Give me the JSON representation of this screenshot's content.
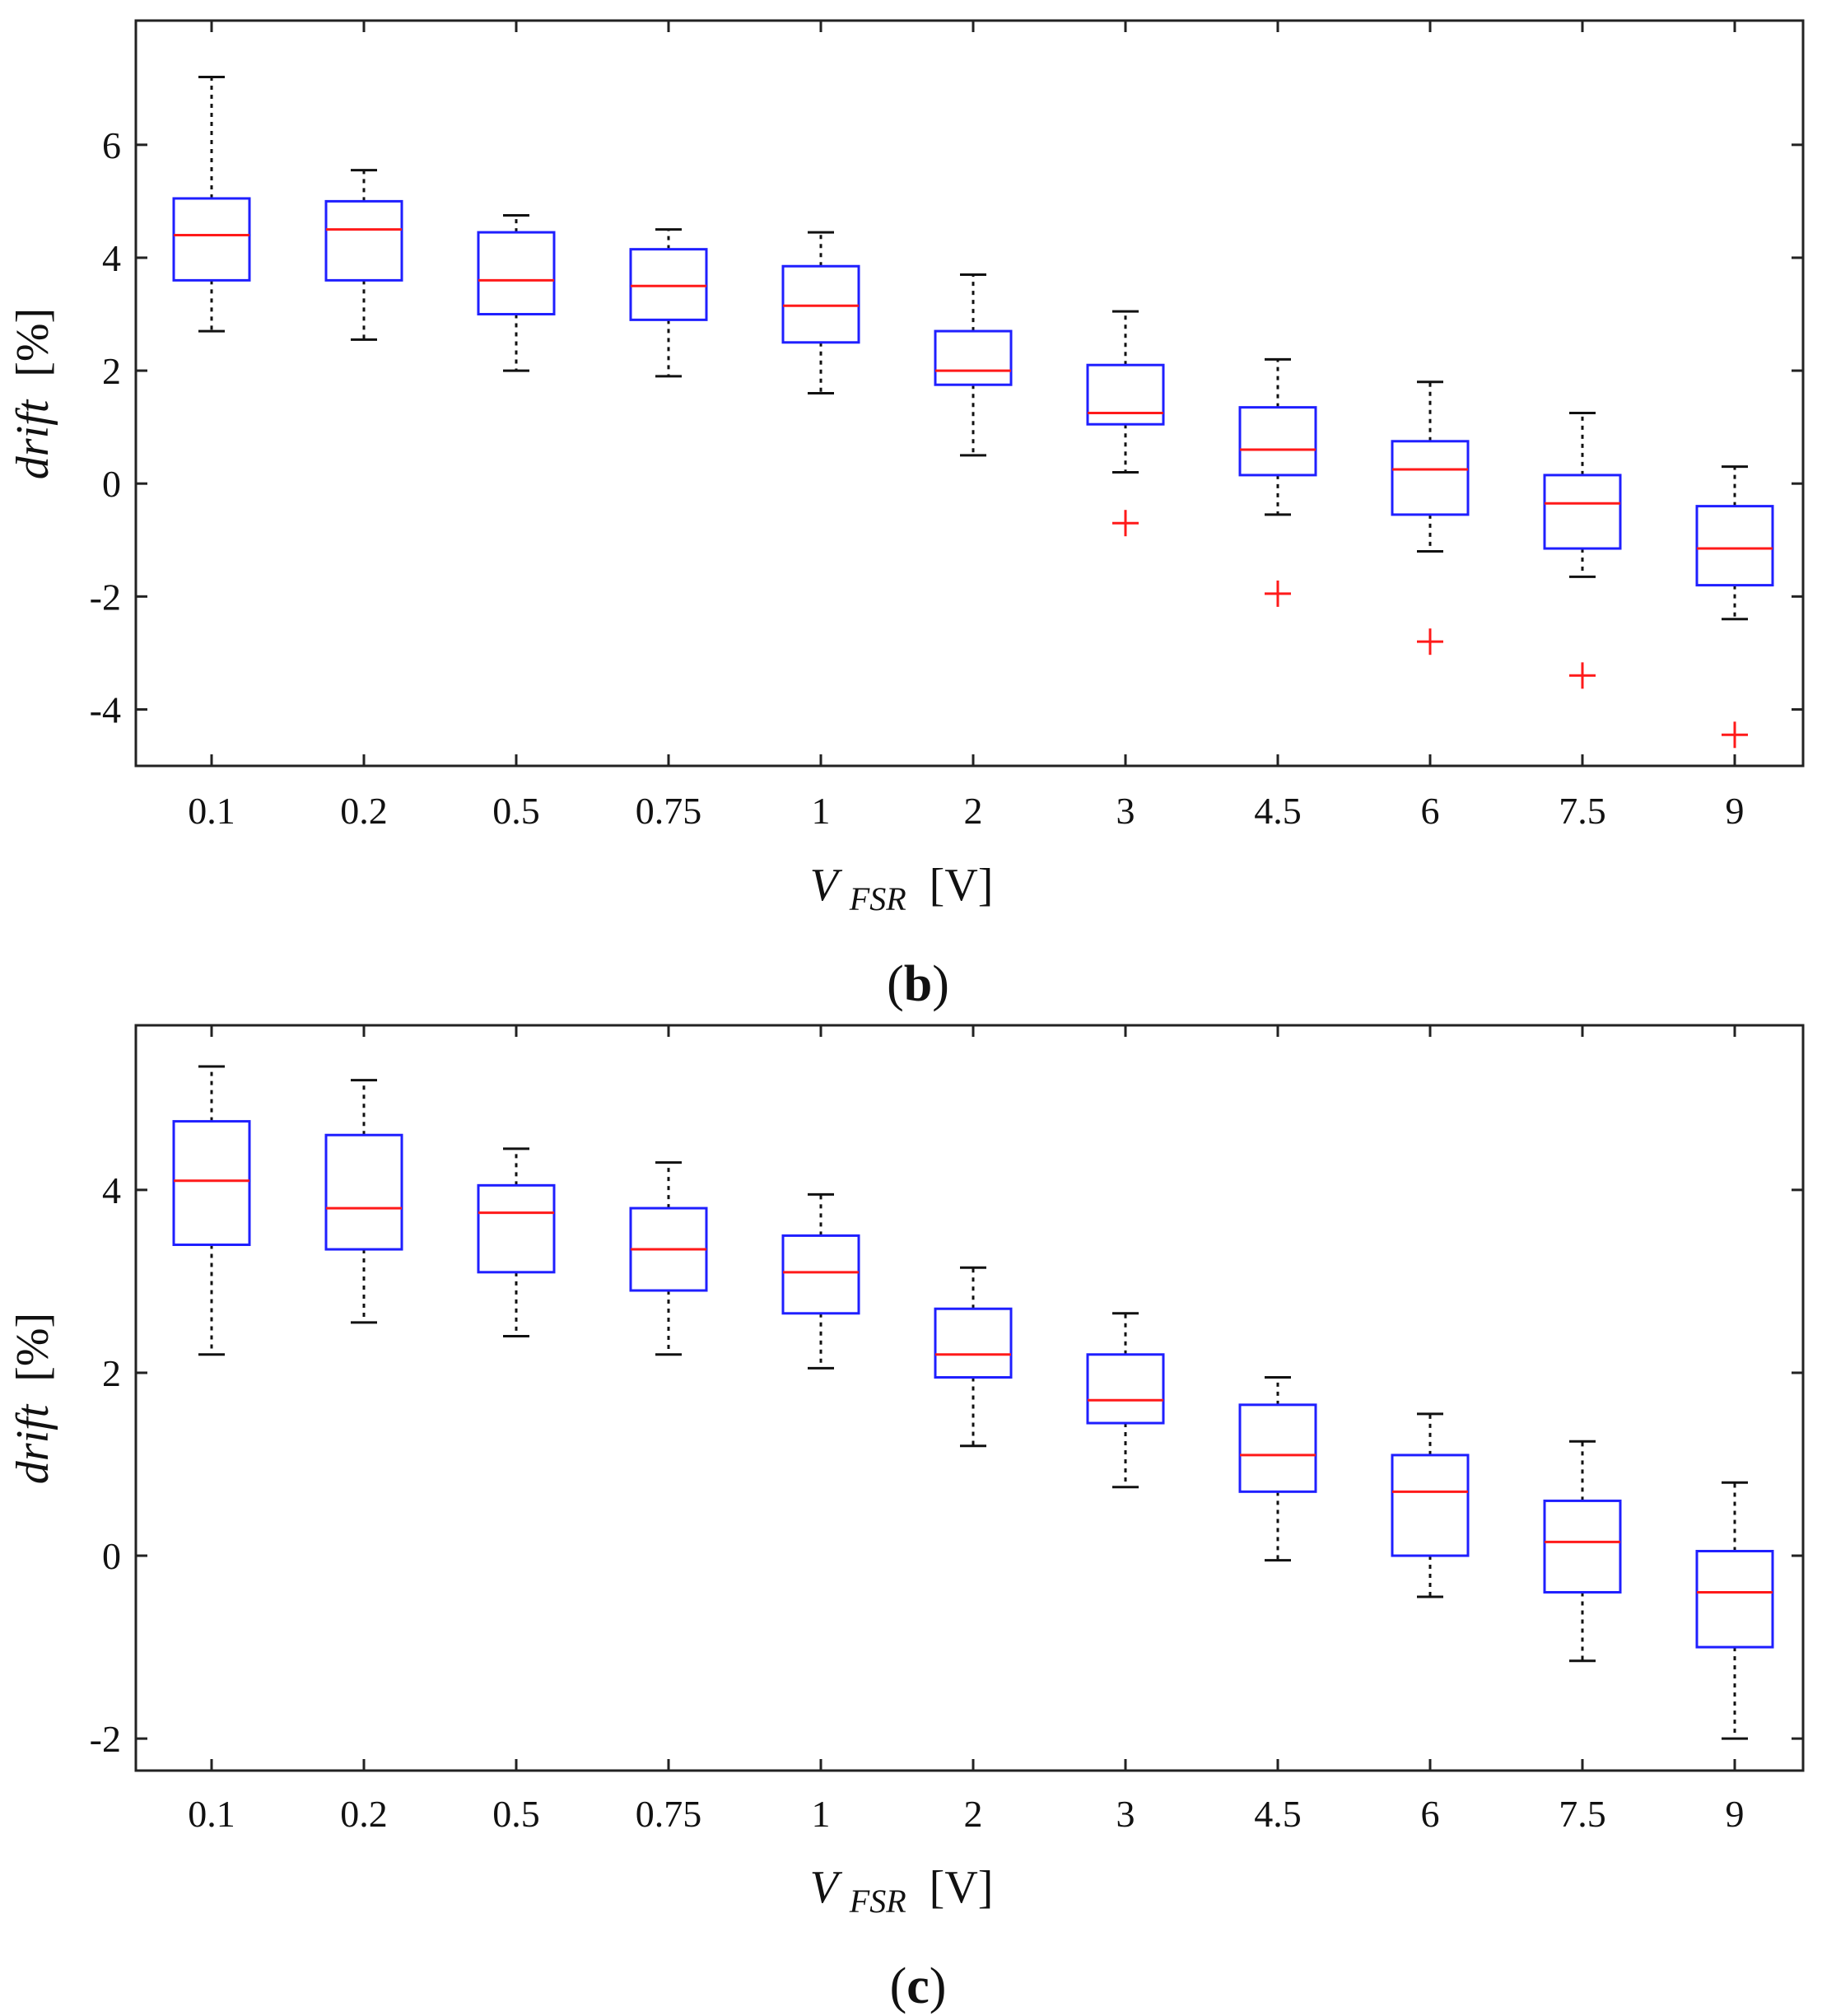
{
  "figure": {
    "panels": [
      "b",
      "c"
    ]
  },
  "chart_data": [
    {
      "type": "box",
      "panel_label": "b",
      "categories": [
        "0.1",
        "0.2",
        "0.5",
        "0.75",
        "1",
        "2",
        "3",
        "4.5",
        "6",
        "7.5",
        "9"
      ],
      "xlabel": {
        "symbol": "V",
        "subscript": "FSR",
        "unit": "[V]"
      },
      "ylabel": {
        "text": "drift",
        "unit": "[%]"
      },
      "ylim": [
        -5.0,
        8.2
      ],
      "yticks": [
        -4,
        -2,
        0,
        2,
        4,
        6
      ],
      "ytick_labels": [
        "-4",
        "-2",
        "0",
        "2",
        "4",
        "6"
      ],
      "grid": false,
      "boxes": [
        {
          "whisker_low": 2.7,
          "q1": 3.6,
          "median": 4.4,
          "q3": 5.05,
          "whisker_high": 7.2,
          "outliers": []
        },
        {
          "whisker_low": 2.55,
          "q1": 3.6,
          "median": 4.5,
          "q3": 5.0,
          "whisker_high": 5.55,
          "outliers": []
        },
        {
          "whisker_low": 2.0,
          "q1": 3.0,
          "median": 3.6,
          "q3": 4.45,
          "whisker_high": 4.75,
          "outliers": []
        },
        {
          "whisker_low": 1.9,
          "q1": 2.9,
          "median": 3.5,
          "q3": 4.15,
          "whisker_high": 4.5,
          "outliers": []
        },
        {
          "whisker_low": 1.6,
          "q1": 2.5,
          "median": 3.15,
          "q3": 3.85,
          "whisker_high": 4.45,
          "outliers": []
        },
        {
          "whisker_low": 0.5,
          "q1": 1.75,
          "median": 2.0,
          "q3": 2.7,
          "whisker_high": 3.7,
          "outliers": []
        },
        {
          "whisker_low": 0.2,
          "q1": 1.05,
          "median": 1.25,
          "q3": 2.1,
          "whisker_high": 3.05,
          "outliers": [
            -0.7
          ]
        },
        {
          "whisker_low": -0.55,
          "q1": 0.15,
          "median": 0.6,
          "q3": 1.35,
          "whisker_high": 2.2,
          "outliers": [
            -1.95
          ]
        },
        {
          "whisker_low": -1.2,
          "q1": -0.55,
          "median": 0.25,
          "q3": 0.75,
          "whisker_high": 1.8,
          "outliers": [
            -2.8
          ]
        },
        {
          "whisker_low": -1.65,
          "q1": -1.15,
          "median": -0.35,
          "q3": 0.15,
          "whisker_high": 1.25,
          "outliers": [
            -3.4
          ]
        },
        {
          "whisker_low": -2.4,
          "q1": -1.8,
          "median": -1.15,
          "q3": -0.4,
          "whisker_high": 0.3,
          "outliers": [
            -4.45
          ]
        }
      ],
      "colors": {
        "box": "#1f1fff",
        "median": "#ff1a1a",
        "whisker": "#111111",
        "outlier": "#ff1a1a"
      }
    },
    {
      "type": "box",
      "panel_label": "c",
      "categories": [
        "0.1",
        "0.2",
        "0.5",
        "0.75",
        "1",
        "2",
        "3",
        "4.5",
        "6",
        "7.5",
        "9"
      ],
      "xlabel": {
        "symbol": "V",
        "subscript": "FSR",
        "unit": "[V]"
      },
      "ylabel": {
        "text": "drift",
        "unit": "[%]"
      },
      "ylim": [
        -2.35,
        5.8
      ],
      "yticks": [
        -2,
        0,
        2,
        4
      ],
      "ytick_labels": [
        "-2",
        "0",
        "2",
        "4"
      ],
      "grid": false,
      "boxes": [
        {
          "whisker_low": 2.2,
          "q1": 3.4,
          "median": 4.1,
          "q3": 4.75,
          "whisker_high": 5.35,
          "outliers": []
        },
        {
          "whisker_low": 2.55,
          "q1": 3.35,
          "median": 3.8,
          "q3": 4.6,
          "whisker_high": 5.2,
          "outliers": []
        },
        {
          "whisker_low": 2.4,
          "q1": 3.1,
          "median": 3.75,
          "q3": 4.05,
          "whisker_high": 4.45,
          "outliers": []
        },
        {
          "whisker_low": 2.2,
          "q1": 2.9,
          "median": 3.35,
          "q3": 3.8,
          "whisker_high": 4.3,
          "outliers": []
        },
        {
          "whisker_low": 2.05,
          "q1": 2.65,
          "median": 3.1,
          "q3": 3.5,
          "whisker_high": 3.95,
          "outliers": []
        },
        {
          "whisker_low": 1.2,
          "q1": 1.95,
          "median": 2.2,
          "q3": 2.7,
          "whisker_high": 3.15,
          "outliers": []
        },
        {
          "whisker_low": 0.75,
          "q1": 1.45,
          "median": 1.7,
          "q3": 2.2,
          "whisker_high": 2.65,
          "outliers": []
        },
        {
          "whisker_low": -0.05,
          "q1": 0.7,
          "median": 1.1,
          "q3": 1.65,
          "whisker_high": 1.95,
          "outliers": []
        },
        {
          "whisker_low": -0.45,
          "q1": 0.0,
          "median": 0.7,
          "q3": 1.1,
          "whisker_high": 1.55,
          "outliers": []
        },
        {
          "whisker_low": -1.15,
          "q1": -0.4,
          "median": 0.15,
          "q3": 0.6,
          "whisker_high": 1.25,
          "outliers": []
        },
        {
          "whisker_low": -2.0,
          "q1": -1.0,
          "median": -0.4,
          "q3": 0.05,
          "whisker_high": 0.8,
          "outliers": []
        }
      ],
      "colors": {
        "box": "#1f1fff",
        "median": "#ff1a1a",
        "whisker": "#111111",
        "outlier": "#ff1a1a"
      }
    }
  ]
}
